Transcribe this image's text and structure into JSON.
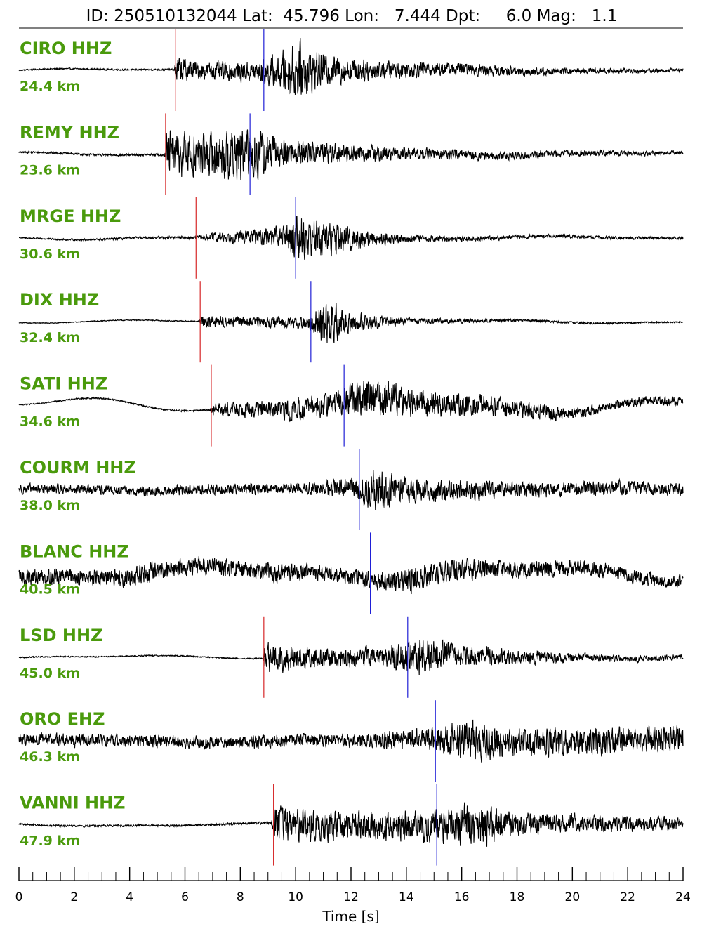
{
  "chart_data": {
    "type": "line",
    "title": "ID: 250510132044 Lat:  45.796 Lon:   7.444 Dpt:     6.0 Mag:   1.1",
    "xlabel": "Time [s]",
    "ylabel": "",
    "xlim": [
      0,
      24
    ],
    "x_ticks": [
      0,
      2,
      4,
      6,
      8,
      10,
      12,
      14,
      16,
      18,
      20,
      22,
      24
    ],
    "minor_tick_step": 0.5,
    "grid": false,
    "colors": {
      "trace": "#000000",
      "p_pick": "#d62728",
      "s_pick": "#1f1fd6",
      "label": "#4a9a0c"
    },
    "series": [
      {
        "station": "CIRO HHZ",
        "distance": "24.4 km",
        "p_time": 5.65,
        "s_time": 8.85,
        "envelope": [
          [
            0,
            0.02
          ],
          [
            5.6,
            0.03
          ],
          [
            5.7,
            0.45
          ],
          [
            6.5,
            0.28
          ],
          [
            8.5,
            0.32
          ],
          [
            9.3,
            0.55
          ],
          [
            10,
            0.95
          ],
          [
            11,
            0.5
          ],
          [
            13,
            0.3
          ],
          [
            16,
            0.2
          ],
          [
            20,
            0.1
          ],
          [
            24,
            0.06
          ]
        ]
      },
      {
        "station": "REMY HHZ",
        "distance": "23.6 km",
        "p_time": 5.3,
        "s_time": 8.35,
        "envelope": [
          [
            0,
            0.03
          ],
          [
            5.25,
            0.04
          ],
          [
            5.35,
            0.8
          ],
          [
            6.5,
            0.7
          ],
          [
            8.5,
            0.85
          ],
          [
            9.5,
            0.45
          ],
          [
            12,
            0.28
          ],
          [
            16,
            0.15
          ],
          [
            20,
            0.1
          ],
          [
            24,
            0.06
          ]
        ]
      },
      {
        "station": "MRGE HHZ",
        "distance": "30.6 km",
        "p_time": 6.4,
        "s_time": 10.0,
        "envelope": [
          [
            0,
            0.02
          ],
          [
            6.4,
            0.05
          ],
          [
            7,
            0.15
          ],
          [
            9.5,
            0.3
          ],
          [
            10,
            0.75
          ],
          [
            11,
            0.55
          ],
          [
            12.5,
            0.3
          ],
          [
            14,
            0.12
          ],
          [
            18,
            0.06
          ],
          [
            24,
            0.04
          ]
        ]
      },
      {
        "station": "DIX HHZ",
        "distance": "32.4 km",
        "p_time": 6.55,
        "s_time": 10.55,
        "envelope": [
          [
            0,
            0.01
          ],
          [
            6.5,
            0.02
          ],
          [
            6.6,
            0.2
          ],
          [
            8,
            0.15
          ],
          [
            10.5,
            0.2
          ],
          [
            11,
            0.85
          ],
          [
            12,
            0.3
          ],
          [
            14,
            0.1
          ],
          [
            18,
            0.04
          ],
          [
            24,
            0.02
          ]
        ]
      },
      {
        "station": "SATI HHZ",
        "distance": "34.6 km",
        "p_time": 6.95,
        "s_time": 11.75,
        "envelope": [
          [
            0,
            0.02
          ],
          [
            6.9,
            0.03
          ],
          [
            7,
            0.2
          ],
          [
            9,
            0.3
          ],
          [
            11.7,
            0.4
          ],
          [
            12.5,
            0.7
          ],
          [
            14,
            0.45
          ],
          [
            18,
            0.3
          ],
          [
            21,
            0.15
          ],
          [
            24,
            0.15
          ]
        ]
      },
      {
        "station": "COURM HHZ",
        "distance": "38.0 km",
        "p_time": null,
        "s_time": 12.3,
        "envelope": [
          [
            0,
            0.15
          ],
          [
            10,
            0.18
          ],
          [
            12,
            0.3
          ],
          [
            13,
            0.7
          ],
          [
            14,
            0.4
          ],
          [
            18,
            0.25
          ],
          [
            24,
            0.2
          ]
        ]
      },
      {
        "station": "BLANC HHZ",
        "distance": "40.5 km",
        "p_time": null,
        "s_time": 12.7,
        "envelope": [
          [
            0,
            0.25
          ],
          [
            5,
            0.3
          ],
          [
            9,
            0.3
          ],
          [
            12,
            0.25
          ],
          [
            14,
            0.4
          ],
          [
            17,
            0.3
          ],
          [
            24,
            0.2
          ]
        ]
      },
      {
        "station": "LSD HHZ",
        "distance": "45.0 km",
        "p_time": 8.85,
        "s_time": 14.05,
        "envelope": [
          [
            0,
            0.02
          ],
          [
            8.8,
            0.02
          ],
          [
            8.9,
            0.5
          ],
          [
            10,
            0.35
          ],
          [
            13,
            0.3
          ],
          [
            14.5,
            0.6
          ],
          [
            16,
            0.35
          ],
          [
            20,
            0.15
          ],
          [
            24,
            0.08
          ]
        ]
      },
      {
        "station": "ORO EHZ",
        "distance": "46.3 km",
        "p_time": null,
        "s_time": 15.05,
        "envelope": [
          [
            0,
            0.2
          ],
          [
            8,
            0.2
          ],
          [
            12,
            0.22
          ],
          [
            15,
            0.35
          ],
          [
            16,
            0.65
          ],
          [
            18,
            0.45
          ],
          [
            24,
            0.4
          ]
        ]
      },
      {
        "station": "VANNI HHZ",
        "distance": "47.9 km",
        "p_time": 9.2,
        "s_time": 15.1,
        "envelope": [
          [
            0,
            0.03
          ],
          [
            9.1,
            0.04
          ],
          [
            9.25,
            0.55
          ],
          [
            12,
            0.45
          ],
          [
            15,
            0.5
          ],
          [
            16.5,
            0.75
          ],
          [
            18,
            0.35
          ],
          [
            24,
            0.2
          ]
        ]
      }
    ]
  }
}
